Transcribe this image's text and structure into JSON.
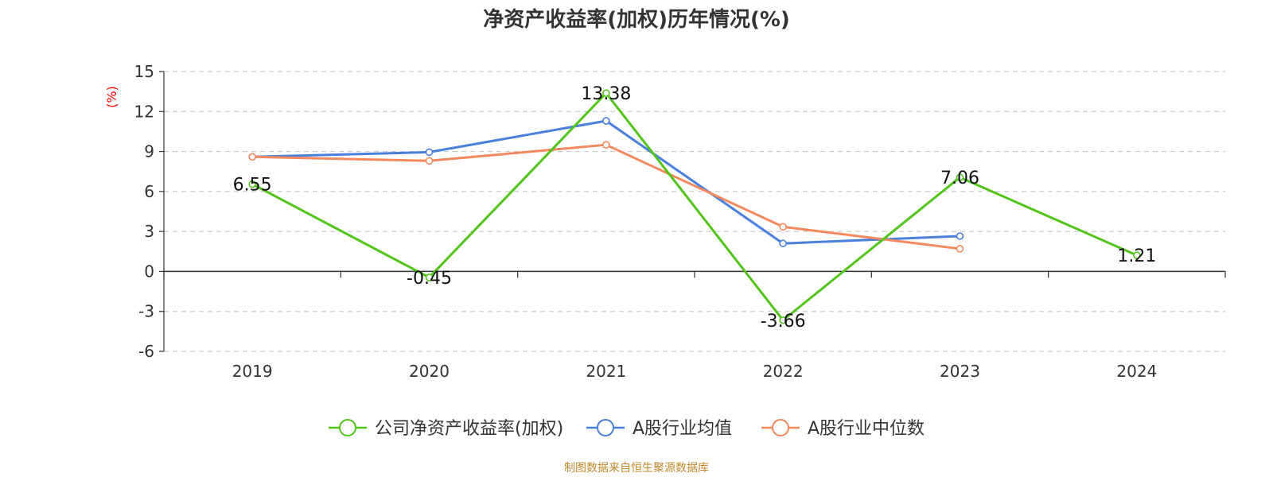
{
  "title": "净资产收益率(加权)历年情况(%)",
  "source": "制图数据来自恒生聚源数据库",
  "colors": {
    "company": "#52c41a",
    "industry_avg": "#4a7fdb",
    "industry_median": "#f4895f",
    "axis_unit": "#ff0000"
  },
  "chart_data": {
    "type": "line",
    "ylabel": "(%)",
    "ylim": [
      -6,
      15
    ],
    "yticks": [
      -6,
      -3,
      0,
      3,
      6,
      9,
      12,
      15
    ],
    "grid": true,
    "legend_position": "bottom",
    "categories": [
      "2019",
      "2020",
      "2021",
      "2022",
      "2023",
      "2024"
    ],
    "series": [
      {
        "name": "公司净资产收益率(加权)",
        "values": [
          6.55,
          -0.45,
          13.38,
          -3.66,
          7.06,
          1.21
        ],
        "labels": [
          "6.55",
          "-0.45",
          "13.38",
          "-3.66",
          "7.06",
          "1.21"
        ]
      },
      {
        "name": "A股行业均值",
        "values": [
          8.6,
          8.95,
          11.3,
          2.1,
          2.65,
          null
        ]
      },
      {
        "name": "A股行业中位数",
        "values": [
          8.6,
          8.3,
          9.5,
          3.35,
          1.7,
          null
        ]
      }
    ]
  }
}
